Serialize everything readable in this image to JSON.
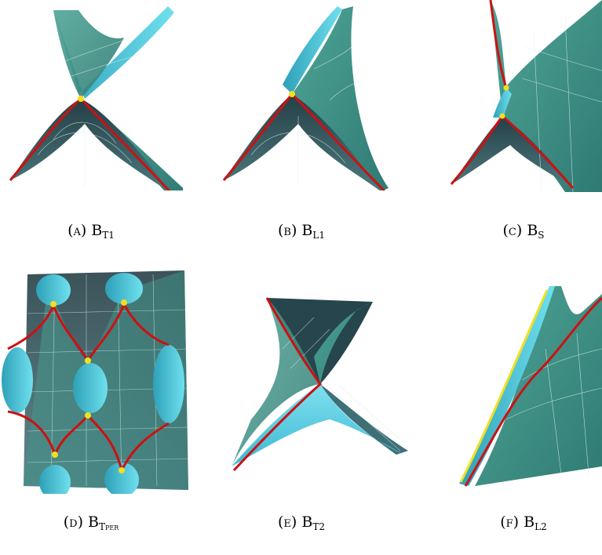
{
  "figure": {
    "panels": [
      {
        "id": "a",
        "label": "(a)",
        "base": "B",
        "sub": "T1"
      },
      {
        "id": "b",
        "label": "(b)",
        "base": "B",
        "sub": "L1"
      },
      {
        "id": "c",
        "label": "(c)",
        "base": "B",
        "sub": "S"
      },
      {
        "id": "d",
        "label": "(d)",
        "base": "B",
        "sub": "Tper"
      },
      {
        "id": "e",
        "label": "(e)",
        "base": "B",
        "sub": "T2"
      },
      {
        "id": "f",
        "label": "(f)",
        "base": "B",
        "sub": "L2"
      }
    ],
    "colors": {
      "surface_teal": "#3f8f86",
      "surface_cyan": "#3fc3d8",
      "surface_dark": "#2f5f63",
      "curve_red": "#cc1111",
      "curve_yellow": "#f0e020",
      "mesh": "#d8f0ee"
    }
  }
}
